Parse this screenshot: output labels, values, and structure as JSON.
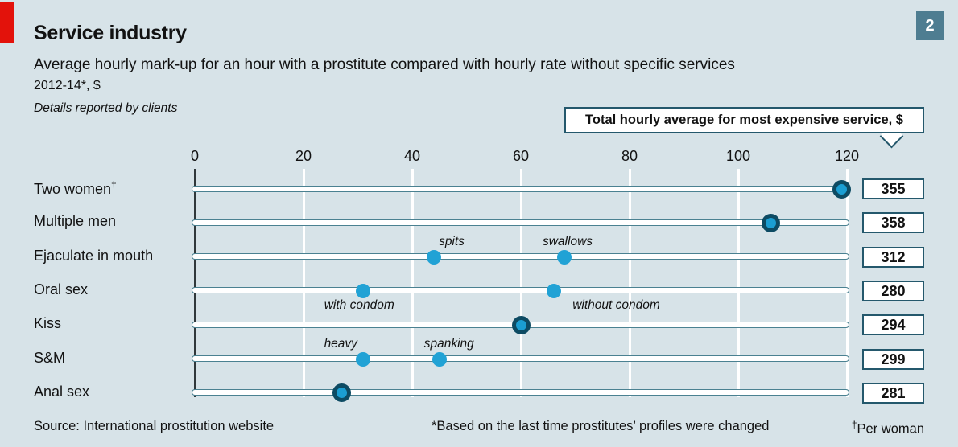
{
  "colors": {
    "background": "#d7e3e8",
    "accent_red": "#e3120b",
    "badge_teal": "#4e7d91",
    "dot_fill": "#21a2d5",
    "dot_ring": "#0d4b63",
    "track_border": "#4a8191",
    "box_border": "#24586c",
    "gridline": "#ffffff",
    "text": "#121212"
  },
  "header": {
    "figure_number": "2",
    "title": "Service industry",
    "subtitle": "Average hourly mark-up for an hour with a prostitute compared with hourly rate without specific services",
    "unit_line": "2012-14*, $",
    "detail_line": "Details reported by clients"
  },
  "callout": {
    "label": "Total hourly average for most expensive service, $"
  },
  "chart_data": {
    "type": "scatter",
    "title": "Average hourly mark-up for an hour with a prostitute compared with hourly rate without specific services",
    "xlabel": "",
    "ylabel": "",
    "xlim": [
      0,
      120
    ],
    "xticks": [
      0,
      20,
      40,
      60,
      80,
      100,
      120
    ],
    "grid": true,
    "legend_position": "none",
    "value_column_label": "Total hourly average for most expensive service, $",
    "rows": [
      {
        "label": "Two women",
        "suffix": "†",
        "total": 355,
        "points": [
          {
            "value": 119,
            "style": "ringed",
            "annotation": "",
            "annotation_side": "",
            "annotation_dx": 0
          }
        ]
      },
      {
        "label": "Multiple men",
        "suffix": "",
        "total": 358,
        "points": [
          {
            "value": 106,
            "style": "ringed",
            "annotation": "",
            "annotation_side": "",
            "annotation_dx": 0
          }
        ]
      },
      {
        "label": "Ejaculate in mouth",
        "suffix": "",
        "total": 312,
        "points": [
          {
            "value": 44,
            "style": "plain",
            "annotation": "spits",
            "annotation_side": "above",
            "annotation_dx": 22
          },
          {
            "value": 68,
            "style": "plain",
            "annotation": "swallows",
            "annotation_side": "above",
            "annotation_dx": 4
          }
        ]
      },
      {
        "label": "Oral sex",
        "suffix": "",
        "total": 280,
        "points": [
          {
            "value": 31,
            "style": "plain",
            "annotation": "with condom",
            "annotation_side": "below",
            "annotation_dx": -5
          },
          {
            "value": 66,
            "style": "plain",
            "annotation": "without condom",
            "annotation_side": "below",
            "annotation_dx": 78
          }
        ]
      },
      {
        "label": "Kiss",
        "suffix": "",
        "total": 294,
        "points": [
          {
            "value": 60,
            "style": "ringed",
            "annotation": "",
            "annotation_side": "",
            "annotation_dx": 0
          }
        ]
      },
      {
        "label": "S&M",
        "suffix": "",
        "total": 299,
        "points": [
          {
            "value": 31,
            "style": "plain",
            "annotation": "heavy",
            "annotation_side": "above",
            "annotation_dx": -28
          },
          {
            "value": 45,
            "style": "plain",
            "annotation": "spanking",
            "annotation_side": "above",
            "annotation_dx": 12
          }
        ]
      },
      {
        "label": "Anal sex",
        "suffix": "",
        "total": 281,
        "points": [
          {
            "value": 27,
            "style": "ringed",
            "annotation": "",
            "annotation_side": "",
            "annotation_dx": 0
          }
        ]
      }
    ]
  },
  "footer": {
    "source": "Source: International prostitution website",
    "note_asterisk": "*Based on the last time prostitutes’ profiles were changed",
    "note_dagger_symbol": "†",
    "note_dagger_text": "Per woman"
  }
}
